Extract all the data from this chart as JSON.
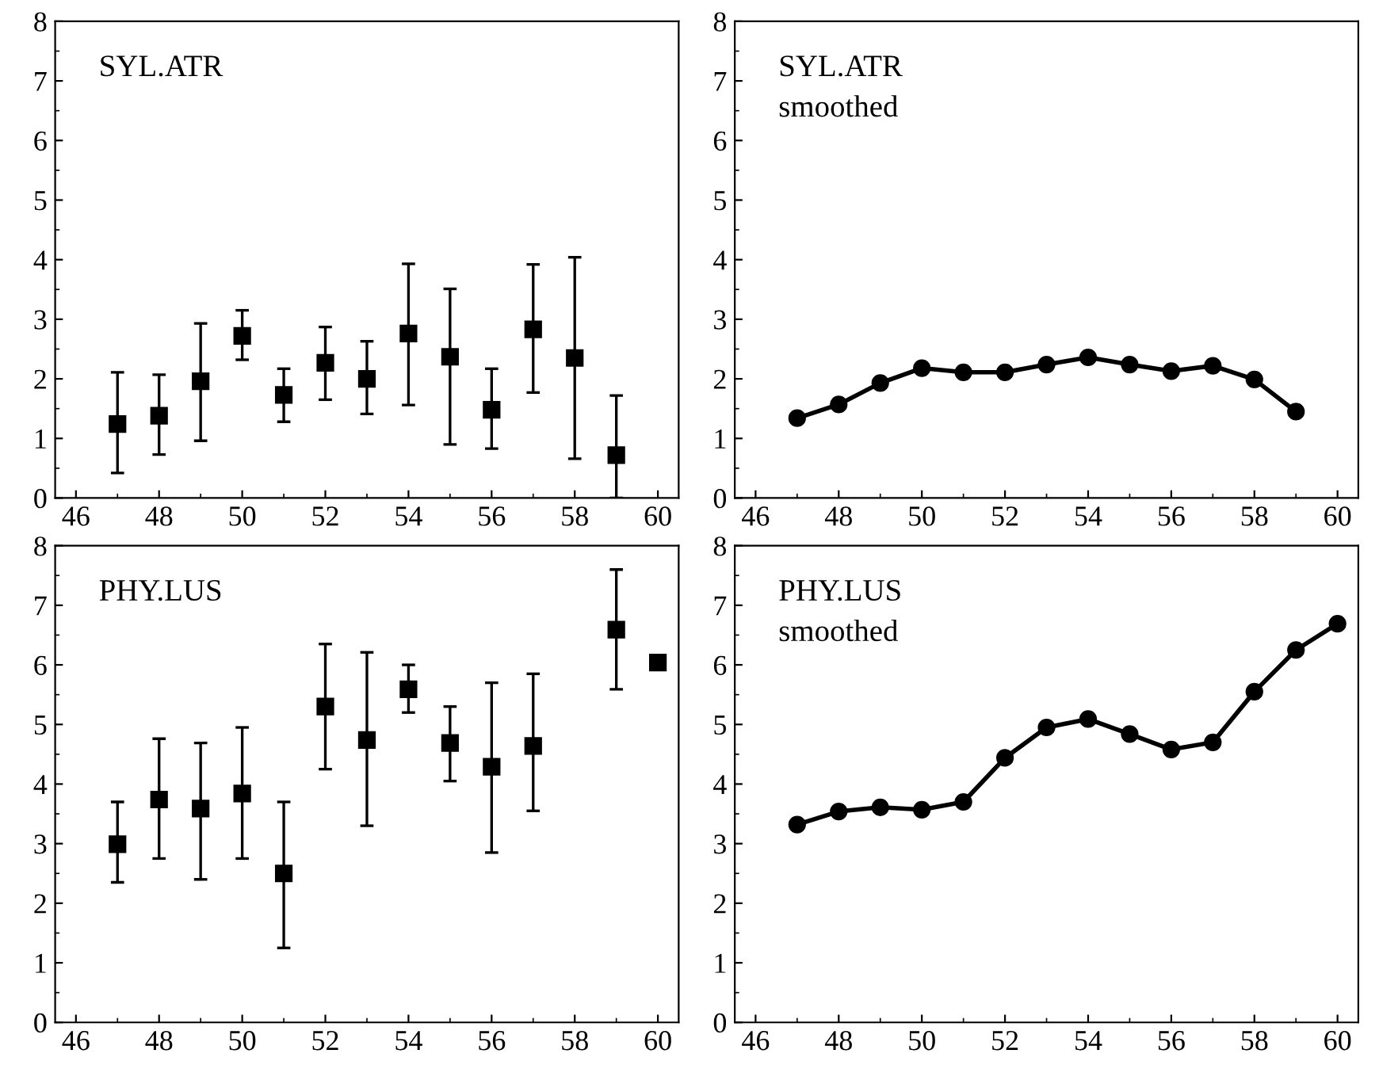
{
  "chart_data": [
    {
      "type": "scatter",
      "title": "SYL.ATR",
      "marker": "square",
      "x": [
        47,
        48,
        49,
        50,
        51,
        52,
        53,
        54,
        55,
        56,
        57,
        58,
        59
      ],
      "xlim": [
        45.5,
        60.5
      ],
      "xticks": [
        46,
        48,
        50,
        52,
        54,
        56,
        58,
        60
      ],
      "ylim": [
        0,
        8
      ],
      "yticks": [
        0,
        1,
        2,
        3,
        4,
        5,
        6,
        7,
        8
      ],
      "series": [
        {
          "color": "#000000",
          "values": [
            1.24,
            1.38,
            1.96,
            2.72,
            1.73,
            2.27,
            2.0,
            2.76,
            2.37,
            1.48,
            2.83,
            2.35,
            0.72
          ],
          "errors": [
            [
              0.42,
              2.11
            ],
            [
              0.73,
              2.07
            ],
            [
              0.96,
              2.93
            ],
            [
              2.32,
              3.15
            ],
            [
              1.28,
              2.17
            ],
            [
              1.65,
              2.87
            ],
            [
              1.41,
              2.63
            ],
            [
              1.56,
              3.93
            ],
            [
              0.9,
              3.51
            ],
            [
              0.83,
              2.17
            ],
            [
              1.77,
              3.92
            ],
            [
              0.66,
              4.04
            ],
            [
              0,
              1.72
            ]
          ]
        }
      ]
    },
    {
      "type": "line",
      "title": "SYL.ATR",
      "subtitle": "smoothed",
      "marker": "circle",
      "line_style": "solid",
      "x": [
        47,
        48,
        49,
        50,
        51,
        52,
        53,
        54,
        55,
        56,
        57,
        58,
        59
      ],
      "xlim": [
        45.5,
        60.5
      ],
      "xticks": [
        46,
        48,
        50,
        52,
        54,
        56,
        58,
        60
      ],
      "ylim": [
        0,
        8
      ],
      "yticks": [
        0,
        1,
        2,
        3,
        4,
        5,
        6,
        7,
        8
      ],
      "series": [
        {
          "color": "#000000",
          "values": [
            1.34,
            1.57,
            1.93,
            2.18,
            2.11,
            2.11,
            2.24,
            2.36,
            2.24,
            2.13,
            2.22,
            1.99,
            1.45
          ]
        }
      ]
    },
    {
      "type": "scatter",
      "title": "PHY.LUS",
      "marker": "square",
      "x": [
        47,
        48,
        49,
        50,
        51,
        52,
        53,
        54,
        55,
        56,
        57,
        59,
        60
      ],
      "xlim": [
        45.5,
        60.5
      ],
      "xticks": [
        46,
        48,
        50,
        52,
        54,
        56,
        58,
        60
      ],
      "ylim": [
        0,
        8
      ],
      "yticks": [
        0,
        1,
        2,
        3,
        4,
        5,
        6,
        7,
        8
      ],
      "series": [
        {
          "color": "#000000",
          "values": [
            2.99,
            3.74,
            3.59,
            3.84,
            2.5,
            5.3,
            4.74,
            5.59,
            4.69,
            4.29,
            4.64,
            6.59,
            6.04
          ],
          "errors": [
            [
              2.35,
              3.7
            ],
            [
              2.75,
              4.76
            ],
            [
              2.4,
              4.69
            ],
            [
              2.75,
              4.95
            ],
            [
              1.25,
              3.7
            ],
            [
              4.25,
              6.35
            ],
            [
              3.3,
              6.21
            ],
            [
              5.2,
              6.0
            ],
            [
              4.05,
              5.3
            ],
            [
              2.85,
              5.7
            ],
            [
              3.55,
              5.85
            ],
            [
              5.59,
              7.6
            ],
            null
          ]
        }
      ]
    },
    {
      "type": "line",
      "title": "PHY.LUS",
      "subtitle": "smoothed",
      "marker": "circle",
      "line_style": "solid",
      "x": [
        47,
        48,
        49,
        50,
        51,
        52,
        53,
        54,
        55,
        56,
        57,
        58,
        59,
        60
      ],
      "xlim": [
        45.5,
        60.5
      ],
      "xticks": [
        46,
        48,
        50,
        52,
        54,
        56,
        58,
        60
      ],
      "ylim": [
        0,
        8
      ],
      "yticks": [
        0,
        1,
        2,
        3,
        4,
        5,
        6,
        7,
        8
      ],
      "series": [
        {
          "color": "#000000",
          "values": [
            3.32,
            3.54,
            3.61,
            3.57,
            3.7,
            4.44,
            4.95,
            5.09,
            4.84,
            4.58,
            4.7,
            5.55,
            6.25,
            6.69
          ]
        }
      ]
    }
  ]
}
